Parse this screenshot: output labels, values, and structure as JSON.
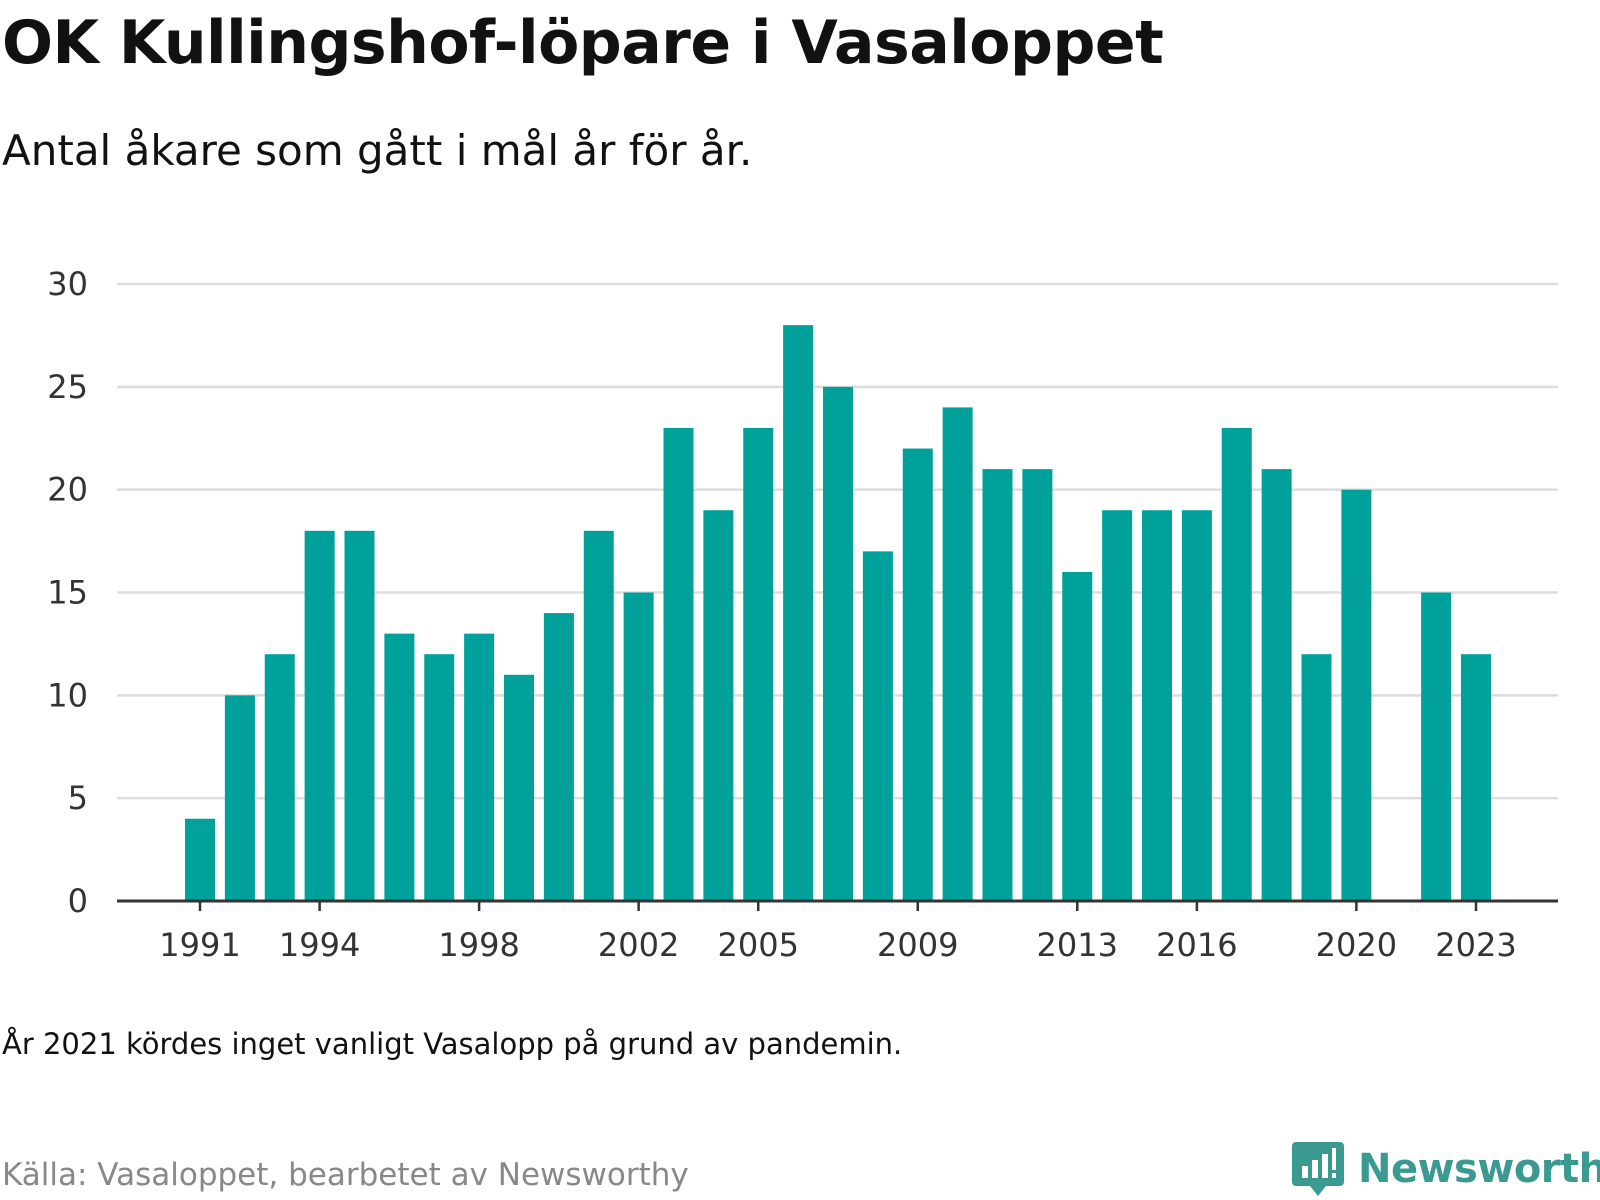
{
  "title": "OK Kullingshof-löpare i Vasaloppet",
  "subtitle": "Antal åkare som gått i mål år för år.",
  "note": "År 2021 kördes inget vanligt Vasalopp på grund av pandemin.",
  "source": "Källa: Vasaloppet, bearbetet av Newsworthy",
  "logo": {
    "text": "Newsworthy",
    "icon": "newsworthy-chart-bubble-icon"
  },
  "colors": {
    "bar": "#00a19a",
    "grid": "#dddddd",
    "axis": "#333333",
    "logo": "#3a9a92"
  },
  "chart_data": {
    "type": "bar",
    "x_tick_labels": [
      "1991",
      "1994",
      "1998",
      "2002",
      "2005",
      "2009",
      "2013",
      "2016",
      "2020",
      "2023"
    ],
    "y_ticks": [
      0,
      5,
      10,
      15,
      20,
      25,
      30
    ],
    "ylim": [
      0,
      30
    ],
    "xlim": [
      1988,
      2025
    ],
    "grid": true,
    "series": [
      {
        "x": [
          1991,
          1992,
          1993,
          1994,
          1995,
          1996,
          1997,
          1998,
          1999,
          2000,
          2001,
          2002,
          2003,
          2004,
          2005,
          2006,
          2007,
          2008,
          2009,
          2010,
          2011,
          2012,
          2013,
          2014,
          2015,
          2016,
          2017,
          2018,
          2019,
          2020,
          2022,
          2023
        ],
        "values": [
          4,
          10,
          12,
          18,
          18,
          13,
          12,
          13,
          11,
          14,
          18,
          15,
          23,
          19,
          23,
          28,
          25,
          17,
          22,
          24,
          21,
          21,
          16,
          19,
          19,
          19,
          23,
          21,
          12,
          20,
          15,
          12
        ]
      }
    ]
  }
}
